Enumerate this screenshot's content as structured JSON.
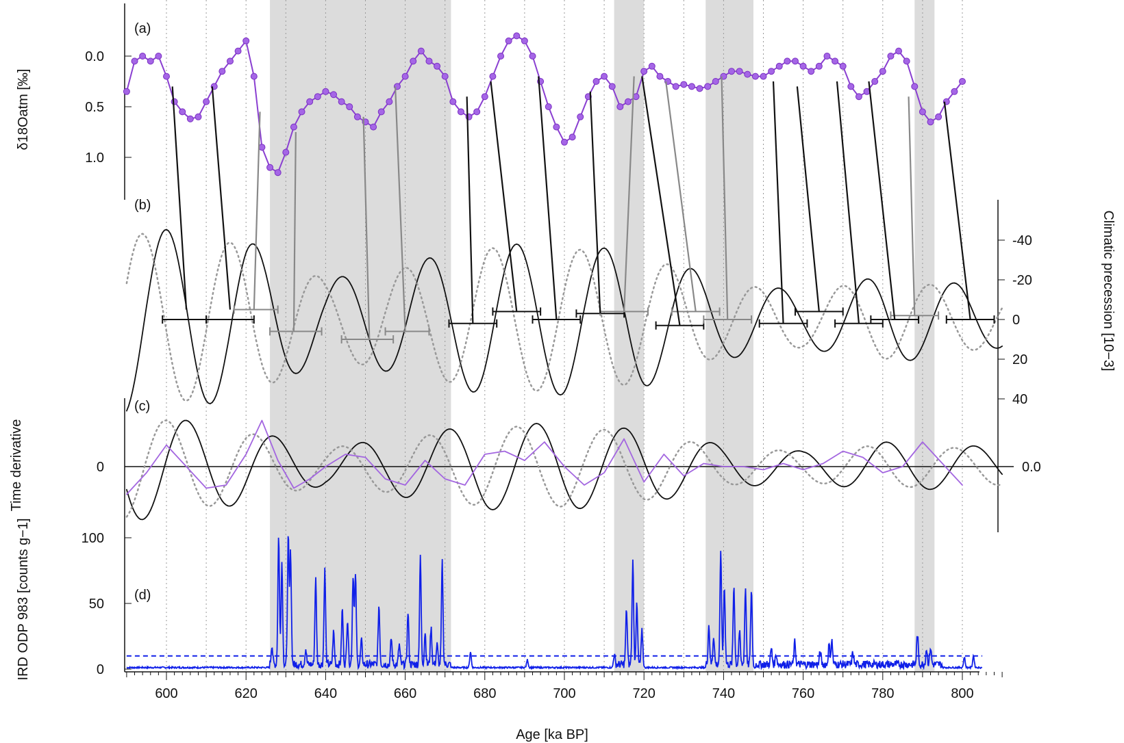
{
  "chart_data": [
    {
      "panel": "(a)",
      "type": "line",
      "ylabel": "δ18Oatm [‰]",
      "ylim": [
        1.5,
        -0.5
      ],
      "y_ticks": [
        "0.0",
        "0.5",
        "1.0"
      ],
      "color": "#8a3fd1",
      "series": [
        {
          "markers": true,
          "x": [
            590,
            592,
            594,
            596,
            598,
            600,
            602,
            604,
            606,
            608,
            610,
            612,
            614,
            616,
            618,
            620,
            622,
            624,
            626,
            628,
            630,
            632,
            634,
            636,
            638,
            640,
            642,
            644,
            646,
            648,
            650,
            652,
            654,
            656,
            658,
            660,
            662,
            664,
            666,
            668,
            670,
            672,
            674,
            676,
            678,
            680,
            682,
            684,
            686,
            688,
            690,
            692,
            694,
            696,
            698,
            700,
            702,
            704,
            706,
            708,
            710,
            712,
            714,
            716,
            718,
            720,
            722,
            724,
            726,
            728,
            730,
            732,
            734,
            736,
            738,
            740,
            742,
            744,
            746,
            748,
            750,
            752,
            754,
            756,
            758,
            760,
            762,
            764,
            766,
            768,
            770,
            772,
            774,
            776,
            778,
            780,
            782,
            784,
            786,
            788,
            790,
            792,
            794,
            796,
            798,
            800
          ],
          "y": [
            0.35,
            0.05,
            0.0,
            0.05,
            0.0,
            0.2,
            0.45,
            0.55,
            0.62,
            0.6,
            0.45,
            0.3,
            0.15,
            0.05,
            -0.05,
            -0.15,
            0.2,
            0.9,
            1.1,
            1.15,
            0.95,
            0.7,
            0.55,
            0.45,
            0.4,
            0.35,
            0.38,
            0.45,
            0.5,
            0.6,
            0.65,
            0.7,
            0.55,
            0.45,
            0.3,
            0.2,
            0.05,
            -0.05,
            0.05,
            0.1,
            0.2,
            0.45,
            0.55,
            0.6,
            0.55,
            0.4,
            0.2,
            0.0,
            -0.15,
            -0.2,
            -0.15,
            0.0,
            0.25,
            0.5,
            0.7,
            0.85,
            0.8,
            0.6,
            0.4,
            0.25,
            0.2,
            0.3,
            0.5,
            0.45,
            0.4,
            0.15,
            0.1,
            0.2,
            0.25,
            0.3,
            0.28,
            0.3,
            0.32,
            0.3,
            0.25,
            0.2,
            0.15,
            0.15,
            0.18,
            0.2,
            0.2,
            0.15,
            0.1,
            0.05,
            0.05,
            0.1,
            0.15,
            0.1,
            0.0,
            0.05,
            0.1,
            0.3,
            0.4,
            0.35,
            0.25,
            0.15,
            0.0,
            -0.05,
            0.05,
            0.3,
            0.55,
            0.65,
            0.6,
            0.45,
            0.35,
            0.25
          ]
        }
      ]
    },
    {
      "panel": "(b)",
      "type": "line",
      "ylabel": "Climatic precession [10−3]",
      "ylim": [
        50,
        -50
      ],
      "y_ticks": [
        "-40",
        "-20",
        "0",
        "20",
        "40"
      ],
      "series": [
        {
          "style": "solid",
          "color": "#111111",
          "period": 22,
          "phase_x": 600,
          "amp_x": [
            590,
            620,
            640,
            660,
            680,
            700,
            720,
            740,
            760,
            780,
            800,
            810
          ],
          "amp_y": [
            48,
            40,
            20,
            28,
            38,
            38,
            34,
            20,
            14,
            22,
            18,
            14
          ]
        },
        {
          "style": "dotted",
          "color": "#999999",
          "period": 22,
          "phase_x": 594,
          "amp_x": [
            590,
            620,
            640,
            660,
            680,
            700,
            720,
            740,
            760,
            780,
            800,
            810
          ],
          "amp_y": [
            44,
            38,
            20,
            26,
            36,
            36,
            32,
            18,
            14,
            20,
            16,
            14
          ]
        }
      ],
      "error_bars": [
        {
          "x1": 599,
          "x2": 610,
          "y": 0,
          "color": "#111111"
        },
        {
          "x1": 610,
          "x2": 622,
          "y": 0,
          "color": "#111111"
        },
        {
          "x1": 617,
          "x2": 628,
          "y": -5,
          "color": "#888888"
        },
        {
          "x1": 626,
          "x2": 639,
          "y": 6,
          "color": "#888888"
        },
        {
          "x1": 644,
          "x2": 657,
          "y": 10,
          "color": "#888888"
        },
        {
          "x1": 655,
          "x2": 666,
          "y": 6,
          "color": "#888888"
        },
        {
          "x1": 671,
          "x2": 683,
          "y": 2,
          "color": "#111111"
        },
        {
          "x1": 682,
          "x2": 694,
          "y": -4,
          "color": "#111111"
        },
        {
          "x1": 692,
          "x2": 704,
          "y": 0,
          "color": "#111111"
        },
        {
          "x1": 703,
          "x2": 715,
          "y": -3,
          "color": "#111111"
        },
        {
          "x1": 709,
          "x2": 721,
          "y": -4,
          "color": "#888888"
        },
        {
          "x1": 723,
          "x2": 735,
          "y": 3,
          "color": "#111111"
        },
        {
          "x1": 727,
          "x2": 739,
          "y": -4,
          "color": "#888888"
        },
        {
          "x1": 735,
          "x2": 747,
          "y": 0,
          "color": "#888888"
        },
        {
          "x1": 749,
          "x2": 761,
          "y": 2,
          "color": "#111111"
        },
        {
          "x1": 758,
          "x2": 770,
          "y": -4,
          "color": "#111111"
        },
        {
          "x1": 768,
          "x2": 780,
          "y": 2,
          "color": "#111111"
        },
        {
          "x1": 777,
          "x2": 789,
          "y": 0,
          "color": "#111111"
        },
        {
          "x1": 782,
          "x2": 794,
          "y": -2,
          "color": "#888888"
        },
        {
          "x1": 796,
          "x2": 808,
          "y": 0,
          "color": "#111111"
        }
      ]
    },
    {
      "panel": "(c)",
      "type": "line",
      "ylabel": "Time derivative",
      "y_ticks": [
        "0"
      ],
      "y2_ticks": [
        "0.0"
      ],
      "series": [
        {
          "style": "solid",
          "color": "#111111",
          "period": 22,
          "phase_x": 605,
          "amp_x": [
            590,
            620,
            640,
            660,
            680,
            700,
            720,
            740,
            760,
            780,
            800,
            810
          ],
          "amp_y": [
            0.9,
            0.6,
            0.3,
            0.5,
            0.7,
            0.7,
            0.6,
            0.35,
            0.25,
            0.4,
            0.35,
            0.3
          ]
        },
        {
          "style": "dotted",
          "color": "#999999",
          "period": 22,
          "phase_x": 600,
          "amp_x": [
            590,
            620,
            640,
            660,
            680,
            700,
            720,
            740,
            760,
            780,
            800,
            810
          ],
          "amp_y": [
            0.85,
            0.55,
            0.3,
            0.45,
            0.65,
            0.65,
            0.55,
            0.3,
            0.25,
            0.35,
            0.3,
            0.3
          ]
        },
        {
          "style": "solid",
          "color": "#a366e0",
          "x": [
            590,
            595,
            600,
            605,
            610,
            615,
            620,
            624,
            628,
            632,
            636,
            640,
            645,
            650,
            655,
            660,
            665,
            670,
            675,
            680,
            685,
            690,
            695,
            700,
            705,
            710,
            715,
            720,
            725,
            730,
            735,
            740,
            745,
            750,
            755,
            760,
            765,
            770,
            775,
            780,
            785,
            790,
            795,
            800
          ],
          "y": [
            -0.45,
            -0.1,
            0.35,
            0.0,
            -0.35,
            -0.3,
            0.2,
            0.75,
            0.1,
            -0.35,
            -0.2,
            0.0,
            0.2,
            0.15,
            -0.2,
            -0.3,
            0.1,
            -0.2,
            -0.3,
            0.2,
            0.25,
            0.1,
            0.4,
            0.0,
            -0.3,
            -0.1,
            0.45,
            -0.25,
            0.2,
            -0.15,
            0.05,
            0.0,
            0.0,
            -0.05,
            0.05,
            -0.05,
            0.05,
            0.25,
            0.15,
            -0.1,
            0.0,
            0.4,
            0.05,
            -0.3
          ]
        }
      ]
    },
    {
      "panel": "(d)",
      "type": "line",
      "ylabel": "IRD ODP 983 [counts g−1]",
      "ylim": [
        0,
        100
      ],
      "y_ticks": [
        "0",
        "50",
        "100"
      ],
      "threshold": 10,
      "color": "#1020e8",
      "peaks": [
        {
          "x": 626.5,
          "y": 15
        },
        {
          "x": 628.2,
          "y": 98
        },
        {
          "x": 629.0,
          "y": 78
        },
        {
          "x": 630.6,
          "y": 97
        },
        {
          "x": 631.2,
          "y": 85
        },
        {
          "x": 635,
          "y": 12
        },
        {
          "x": 637.5,
          "y": 65
        },
        {
          "x": 639.8,
          "y": 72
        },
        {
          "x": 642,
          "y": 25
        },
        {
          "x": 644.2,
          "y": 42
        },
        {
          "x": 645.5,
          "y": 35
        },
        {
          "x": 646.9,
          "y": 68
        },
        {
          "x": 647.5,
          "y": 67
        },
        {
          "x": 649,
          "y": 18
        },
        {
          "x": 653.4,
          "y": 45
        },
        {
          "x": 656.5,
          "y": 20
        },
        {
          "x": 658.5,
          "y": 15
        },
        {
          "x": 660.7,
          "y": 40
        },
        {
          "x": 663.8,
          "y": 81
        },
        {
          "x": 665,
          "y": 25
        },
        {
          "x": 666.5,
          "y": 28
        },
        {
          "x": 668,
          "y": 15
        },
        {
          "x": 669.3,
          "y": 78
        },
        {
          "x": 676.4,
          "y": 12
        },
        {
          "x": 690.7,
          "y": 6
        },
        {
          "x": 712.5,
          "y": 8
        },
        {
          "x": 715.6,
          "y": 42
        },
        {
          "x": 717.2,
          "y": 78
        },
        {
          "x": 718.2,
          "y": 45
        },
        {
          "x": 719.5,
          "y": 25
        },
        {
          "x": 736.3,
          "y": 30
        },
        {
          "x": 737.5,
          "y": 22
        },
        {
          "x": 739.3,
          "y": 85
        },
        {
          "x": 740.2,
          "y": 60
        },
        {
          "x": 742.6,
          "y": 60
        },
        {
          "x": 744,
          "y": 25
        },
        {
          "x": 745.5,
          "y": 58
        },
        {
          "x": 747,
          "y": 55
        },
        {
          "x": 752,
          "y": 12
        },
        {
          "x": 753.2,
          "y": 8
        },
        {
          "x": 757.9,
          "y": 17
        },
        {
          "x": 764.3,
          "y": 10
        },
        {
          "x": 766.5,
          "y": 15
        },
        {
          "x": 767.2,
          "y": 18
        },
        {
          "x": 772.5,
          "y": 9
        },
        {
          "x": 788.7,
          "y": 23
        },
        {
          "x": 791,
          "y": 12
        },
        {
          "x": 792,
          "y": 13
        },
        {
          "x": 800.5,
          "y": 8
        },
        {
          "x": 802.8,
          "y": 9
        }
      ]
    }
  ],
  "x_axis": {
    "label": "Age [ka BP]",
    "xlim": [
      590,
      810
    ],
    "ticks": [
      "600",
      "620",
      "640",
      "660",
      "680",
      "700",
      "720",
      "740",
      "760",
      "780",
      "800"
    ]
  },
  "shaded_bands": [
    [
      626,
      671.5
    ],
    [
      712.5,
      720
    ],
    [
      735.5,
      747.5
    ],
    [
      788,
      793
    ]
  ],
  "tie_lines": [
    {
      "x1": 601.5,
      "y1": 0.3,
      "x2": 605,
      "y2": -5,
      "color": "#111111"
    },
    {
      "x1": 611.5,
      "y1": 0.3,
      "x2": 616,
      "y2": -5,
      "color": "#111111"
    },
    {
      "x1": 623.5,
      "y1": 0.55,
      "x2": 622,
      "y2": -5,
      "color": "#888888"
    },
    {
      "x1": 632.5,
      "y1": 0.75,
      "x2": 632,
      "y2": 6,
      "color": "#888888"
    },
    {
      "x1": 649.5,
      "y1": 0.6,
      "x2": 651,
      "y2": 10,
      "color": "#888888"
    },
    {
      "x1": 657.5,
      "y1": 0.3,
      "x2": 660,
      "y2": 6,
      "color": "#888888"
    },
    {
      "x1": 675.5,
      "y1": 0.4,
      "x2": 677,
      "y2": 2,
      "color": "#111111"
    },
    {
      "x1": 681.5,
      "y1": 0.25,
      "x2": 688,
      "y2": -4,
      "color": "#111111"
    },
    {
      "x1": 693.5,
      "y1": 0.2,
      "x2": 698,
      "y2": 0,
      "color": "#111111"
    },
    {
      "x1": 706.5,
      "y1": 0.35,
      "x2": 709,
      "y2": -3,
      "color": "#111111"
    },
    {
      "x1": 717.5,
      "y1": 0.2,
      "x2": 715,
      "y2": -4,
      "color": "#888888"
    },
    {
      "x1": 719.5,
      "y1": 0.2,
      "x2": 729,
      "y2": 3,
      "color": "#111111"
    },
    {
      "x1": 725.5,
      "y1": 0.25,
      "x2": 733,
      "y2": -4,
      "color": "#888888"
    },
    {
      "x1": 739.5,
      "y1": 0.2,
      "x2": 741,
      "y2": 0,
      "color": "#888888"
    },
    {
      "x1": 752.5,
      "y1": 0.25,
      "x2": 755,
      "y2": 2,
      "color": "#111111"
    },
    {
      "x1": 758.5,
      "y1": 0.3,
      "x2": 764,
      "y2": -4,
      "color": "#111111"
    },
    {
      "x1": 768.5,
      "y1": 0.25,
      "x2": 774,
      "y2": 2,
      "color": "#111111"
    },
    {
      "x1": 776.5,
      "y1": 0.25,
      "x2": 783,
      "y2": 0,
      "color": "#111111"
    },
    {
      "x1": 786.5,
      "y1": 0.4,
      "x2": 788,
      "y2": -2,
      "color": "#888888"
    },
    {
      "x1": 795.5,
      "y1": 0.45,
      "x2": 802,
      "y2": 0,
      "color": "#111111"
    }
  ]
}
